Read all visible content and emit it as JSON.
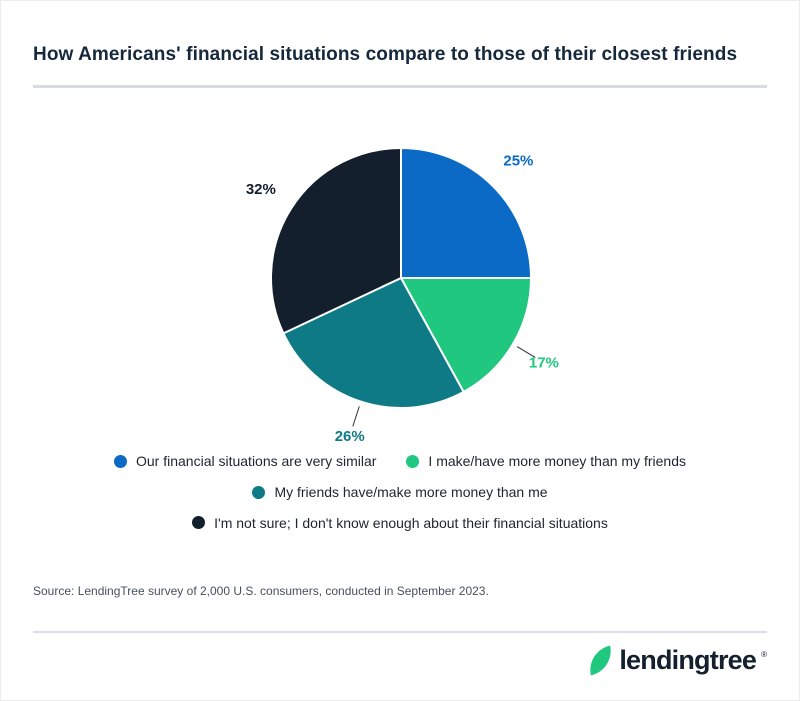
{
  "header": {
    "title": "How Americans' financial situations compare to those of their closest friends"
  },
  "chart_data": {
    "type": "pie",
    "title": "How Americans' financial situations compare to those of their closest friends",
    "unit": "%",
    "total": 100,
    "start_angle_deg": 0,
    "direction": "clockwise",
    "legend_position": "below",
    "slices": [
      {
        "label": "Our financial situations are very similar",
        "value": 25,
        "color": "#0a6ac6",
        "callout_line": false
      },
      {
        "label": "I make/have more money than my friends",
        "value": 17,
        "color": "#1fc77f",
        "callout_line": true
      },
      {
        "label": "My friends have/make more money than me",
        "value": 26,
        "color": "#0e7a85",
        "callout_line": true
      },
      {
        "label": "I'm not sure; I don't know enough about their financial situations",
        "value": 32,
        "color": "#141f2e",
        "callout_line": false
      }
    ],
    "legend_rows": [
      [
        0,
        1
      ],
      [
        2
      ],
      [
        3
      ]
    ]
  },
  "source": {
    "text": "Source: LendingTree survey of 2,000 U.S. consumers, conducted in September 2023."
  },
  "footer": {
    "brand": "lendingtree",
    "trademark": "®"
  }
}
